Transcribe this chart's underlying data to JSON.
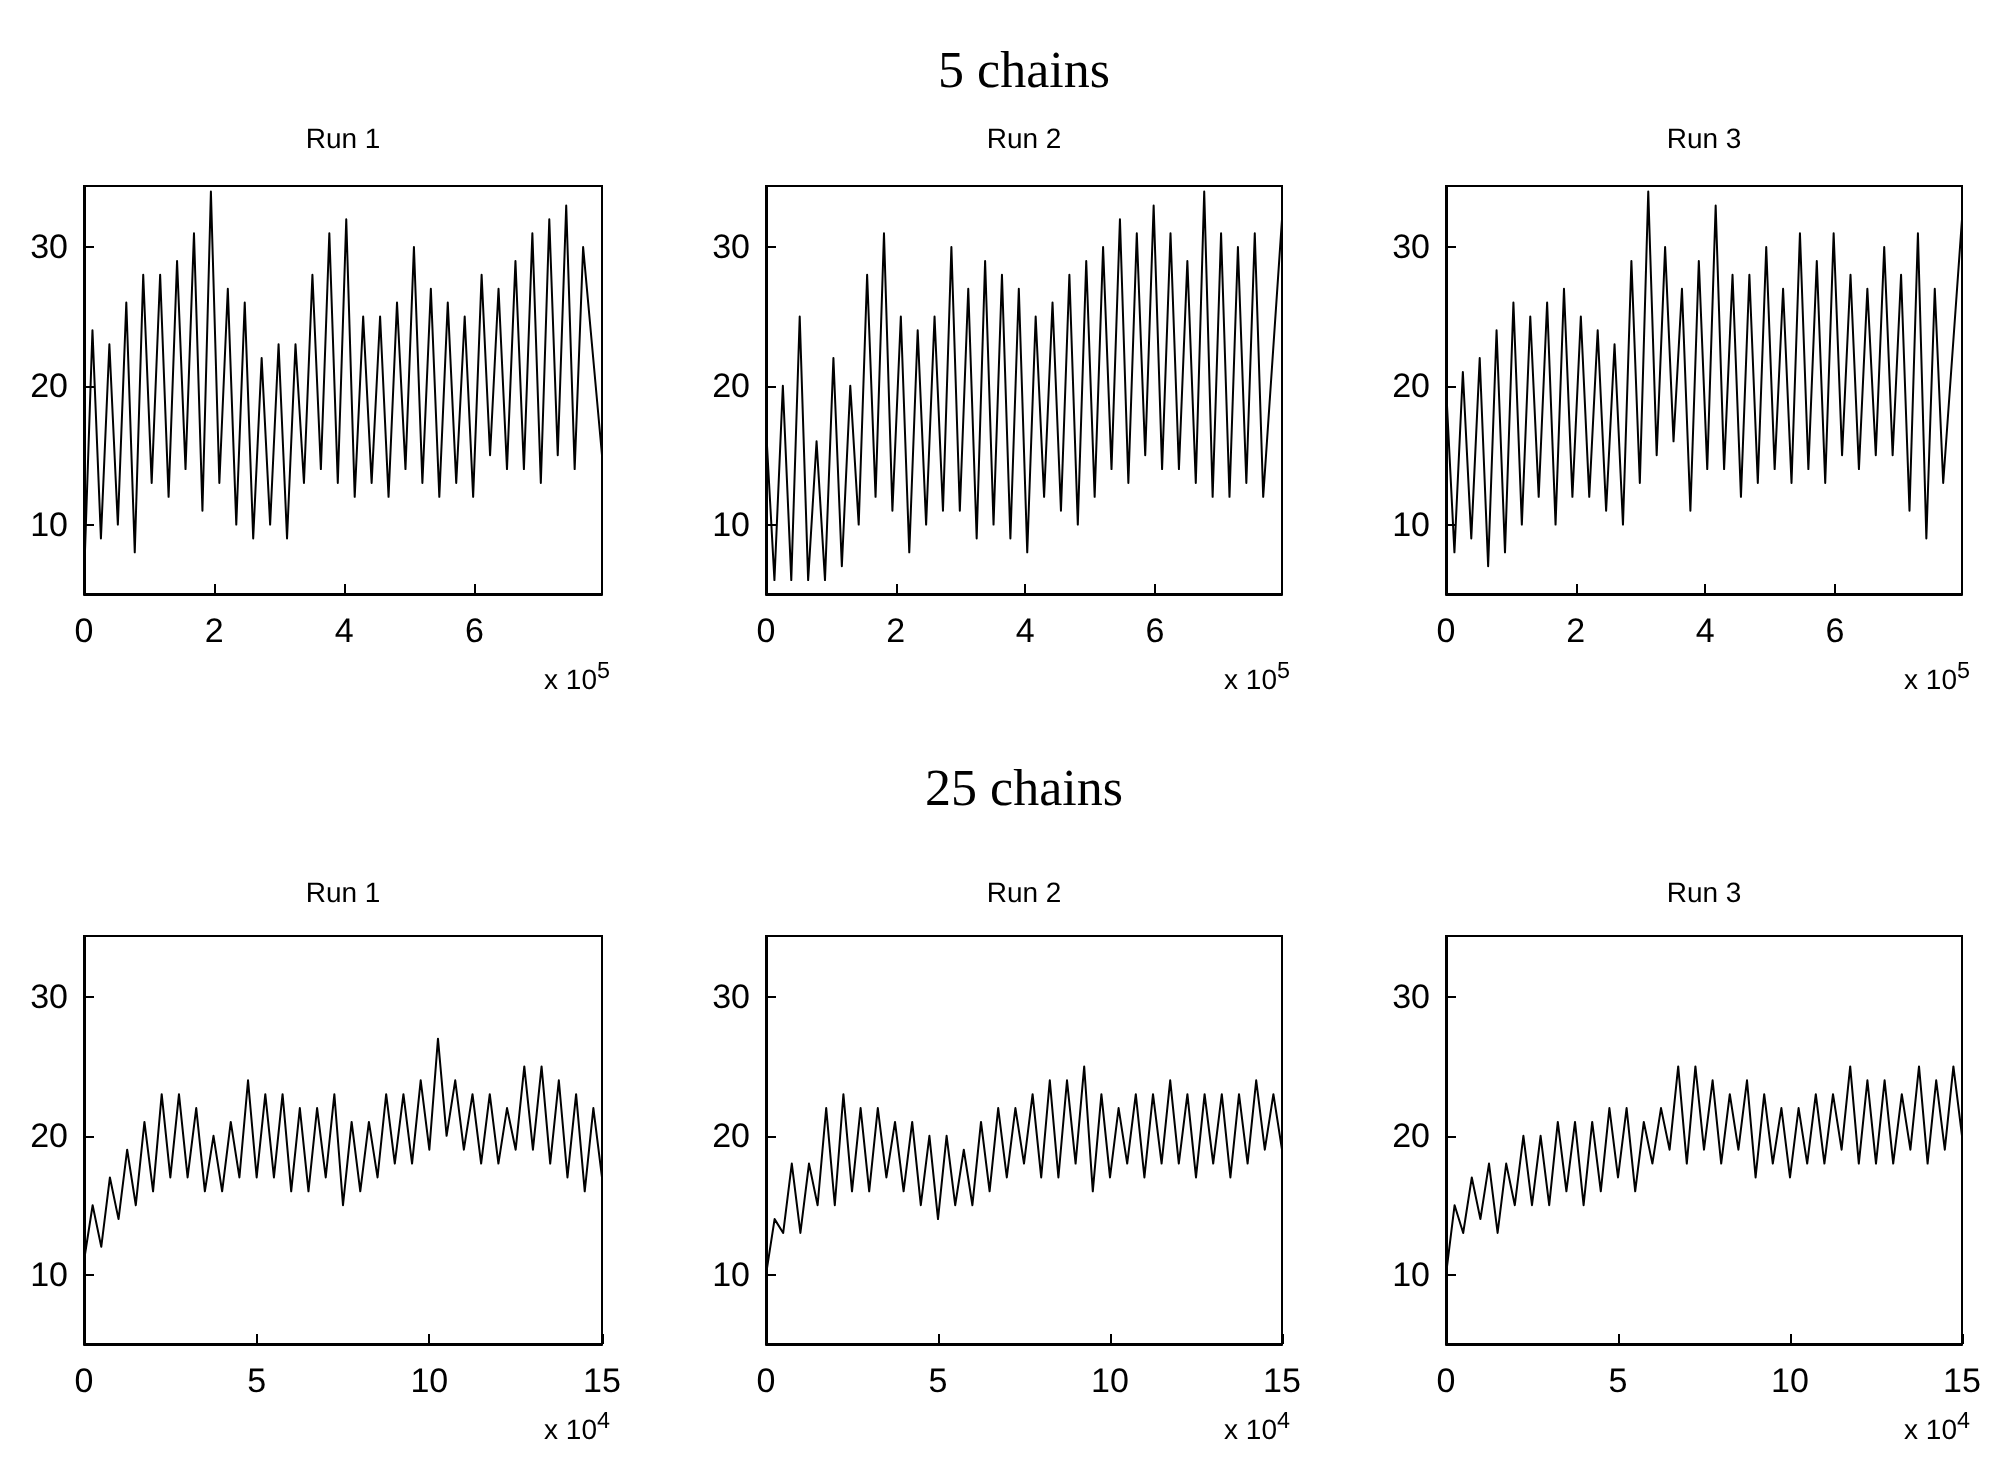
{
  "chart_data": [
    {
      "type": "line",
      "title": "Run 1",
      "xlabel": "x 10$^{5}$",
      "xlim": [
        0,
        7.96
      ],
      "xticks": [
        0,
        2,
        4,
        6
      ],
      "ylim": [
        5,
        34.4
      ],
      "yticks": [
        10,
        20,
        30
      ],
      "x": [
        0,
        0.13,
        0.26,
        0.39,
        0.52,
        0.65,
        0.78,
        0.91,
        1.04,
        1.17,
        1.3,
        1.43,
        1.56,
        1.69,
        1.82,
        1.95,
        2.08,
        2.21,
        2.34,
        2.47,
        2.6,
        2.73,
        2.86,
        2.99,
        3.12,
        3.25,
        3.38,
        3.51,
        3.64,
        3.77,
        3.9,
        4.03,
        4.16,
        4.29,
        4.42,
        4.55,
        4.68,
        4.81,
        4.94,
        5.07,
        5.2,
        5.33,
        5.46,
        5.59,
        5.72,
        5.85,
        5.98,
        6.11,
        6.24,
        6.37,
        6.5,
        6.63,
        6.76,
        6.89,
        7.02,
        7.15,
        7.28,
        7.41,
        7.54,
        7.67,
        7.96
      ],
      "series": [
        {
          "color": "#000000",
          "values": [
            6,
            24,
            9,
            23,
            10,
            26,
            8,
            28,
            13,
            28,
            12,
            29,
            14,
            31,
            11,
            34,
            13,
            27,
            10,
            26,
            9,
            22,
            10,
            23,
            9,
            23,
            13,
            28,
            14,
            31,
            13,
            32,
            12,
            25,
            13,
            25,
            12,
            26,
            14,
            30,
            13,
            27,
            12,
            26,
            13,
            25,
            12,
            28,
            15,
            27,
            14,
            29,
            14,
            31,
            13,
            32,
            15,
            33,
            14,
            30,
            15
          ]
        }
      ]
    },
    {
      "type": "line",
      "title": "5 chains",
      "subtitle": "Run 2",
      "xlabel": "x 10$^{5}$",
      "xlim": [
        0,
        7.96
      ],
      "xticks": [
        0,
        2,
        4,
        6
      ],
      "ylim": [
        5,
        34.4
      ],
      "yticks": [
        10,
        20,
        30
      ],
      "x": [
        0,
        0.13,
        0.26,
        0.39,
        0.52,
        0.65,
        0.78,
        0.91,
        1.04,
        1.17,
        1.3,
        1.43,
        1.56,
        1.69,
        1.82,
        1.95,
        2.08,
        2.21,
        2.34,
        2.47,
        2.6,
        2.73,
        2.86,
        2.99,
        3.12,
        3.25,
        3.38,
        3.51,
        3.64,
        3.77,
        3.9,
        4.03,
        4.16,
        4.29,
        4.42,
        4.55,
        4.68,
        4.81,
        4.94,
        5.07,
        5.2,
        5.33,
        5.46,
        5.59,
        5.72,
        5.85,
        5.98,
        6.11,
        6.24,
        6.37,
        6.5,
        6.63,
        6.76,
        6.89,
        7.02,
        7.15,
        7.28,
        7.41,
        7.54,
        7.67,
        7.96
      ],
      "series": [
        {
          "color": "#000000",
          "values": [
            17,
            6,
            20,
            6,
            25,
            6,
            16,
            6,
            22,
            7,
            20,
            10,
            28,
            12,
            31,
            11,
            25,
            8,
            24,
            10,
            25,
            11,
            30,
            11,
            27,
            9,
            29,
            10,
            28,
            9,
            27,
            8,
            25,
            12,
            26,
            11,
            28,
            10,
            29,
            12,
            30,
            14,
            32,
            13,
            31,
            15,
            33,
            14,
            31,
            14,
            29,
            13,
            34,
            12,
            31,
            12,
            30,
            13,
            31,
            12,
            32
          ]
        }
      ]
    },
    {
      "type": "line",
      "title": "Run 3",
      "xlabel": "x 10$^{5}$",
      "xlim": [
        0,
        7.96
      ],
      "xticks": [
        0,
        2,
        4,
        6
      ],
      "ylim": [
        5,
        34.4
      ],
      "yticks": [
        10,
        20,
        30
      ],
      "x": [
        0,
        0.13,
        0.26,
        0.39,
        0.52,
        0.65,
        0.78,
        0.91,
        1.04,
        1.17,
        1.3,
        1.43,
        1.56,
        1.69,
        1.82,
        1.95,
        2.08,
        2.21,
        2.34,
        2.47,
        2.6,
        2.73,
        2.86,
        2.99,
        3.12,
        3.25,
        3.38,
        3.51,
        3.64,
        3.77,
        3.9,
        4.03,
        4.16,
        4.29,
        4.42,
        4.55,
        4.68,
        4.81,
        4.94,
        5.07,
        5.2,
        5.33,
        5.46,
        5.59,
        5.72,
        5.85,
        5.98,
        6.11,
        6.24,
        6.37,
        6.5,
        6.63,
        6.76,
        6.89,
        7.02,
        7.15,
        7.28,
        7.41,
        7.54,
        7.67,
        7.96
      ],
      "series": [
        {
          "color": "#000000",
          "values": [
            20,
            8,
            21,
            9,
            22,
            7,
            24,
            8,
            26,
            10,
            25,
            12,
            26,
            10,
            27,
            12,
            25,
            12,
            24,
            11,
            23,
            10,
            29,
            13,
            34,
            15,
            30,
            16,
            27,
            11,
            29,
            14,
            33,
            14,
            28,
            12,
            28,
            13,
            30,
            14,
            27,
            13,
            31,
            14,
            29,
            13,
            31,
            15,
            28,
            14,
            27,
            15,
            30,
            15,
            28,
            11,
            31,
            9,
            27,
            13,
            32
          ]
        }
      ]
    },
    {
      "type": "line",
      "title": "Run 1",
      "xlabel": "x 10$^{4}$",
      "xlim": [
        0,
        15
      ],
      "xticks": [
        0,
        5,
        10,
        15
      ],
      "ylim": [
        5,
        34.4
      ],
      "yticks": [
        10,
        20,
        30
      ],
      "x": [
        0,
        0.25,
        0.5,
        0.75,
        1,
        1.25,
        1.5,
        1.75,
        2,
        2.25,
        2.5,
        2.75,
        3,
        3.25,
        3.5,
        3.75,
        4,
        4.25,
        4.5,
        4.75,
        5,
        5.25,
        5.5,
        5.75,
        6,
        6.25,
        6.5,
        6.75,
        7,
        7.25,
        7.5,
        7.75,
        8,
        8.25,
        8.5,
        8.75,
        9,
        9.25,
        9.5,
        9.75,
        10,
        10.25,
        10.5,
        10.75,
        11,
        11.25,
        11.5,
        11.75,
        12,
        12.25,
        12.5,
        12.75,
        13,
        13.25,
        13.5,
        13.75,
        14,
        14.25,
        14.5,
        14.75,
        15
      ],
      "series": [
        {
          "color": "#000000",
          "values": [
            11,
            15,
            12,
            17,
            14,
            19,
            15,
            21,
            16,
            23,
            17,
            23,
            17,
            22,
            16,
            20,
            16,
            21,
            17,
            24,
            17,
            23,
            17,
            23,
            16,
            22,
            16,
            22,
            17,
            23,
            15,
            21,
            16,
            21,
            17,
            23,
            18,
            23,
            18,
            24,
            19,
            27,
            20,
            24,
            19,
            23,
            18,
            23,
            18,
            22,
            19,
            25,
            19,
            25,
            18,
            24,
            17,
            23,
            16,
            22,
            17
          ]
        }
      ]
    },
    {
      "type": "line",
      "title": "25 chains",
      "subtitle": "Run 2",
      "xlabel": "x 10$^{4}$",
      "xlim": [
        0,
        15
      ],
      "xticks": [
        0,
        5,
        10,
        15
      ],
      "ylim": [
        5,
        34.4
      ],
      "yticks": [
        10,
        20,
        30
      ],
      "x": [
        0,
        0.25,
        0.5,
        0.75,
        1,
        1.25,
        1.5,
        1.75,
        2,
        2.25,
        2.5,
        2.75,
        3,
        3.25,
        3.5,
        3.75,
        4,
        4.25,
        4.5,
        4.75,
        5,
        5.25,
        5.5,
        5.75,
        6,
        6.25,
        6.5,
        6.75,
        7,
        7.25,
        7.5,
        7.75,
        8,
        8.25,
        8.5,
        8.75,
        9,
        9.25,
        9.5,
        9.75,
        10,
        10.25,
        10.5,
        10.75,
        11,
        11.25,
        11.5,
        11.75,
        12,
        12.25,
        12.5,
        12.75,
        13,
        13.25,
        13.5,
        13.75,
        14,
        14.25,
        14.5,
        14.75,
        15
      ],
      "series": [
        {
          "color": "#000000",
          "values": [
            10,
            14,
            13,
            18,
            13,
            18,
            15,
            22,
            15,
            23,
            16,
            22,
            16,
            22,
            17,
            21,
            16,
            21,
            15,
            20,
            14,
            20,
            15,
            19,
            15,
            21,
            16,
            22,
            17,
            22,
            18,
            23,
            17,
            24,
            17,
            24,
            18,
            25,
            16,
            23,
            17,
            22,
            18,
            23,
            17,
            23,
            18,
            24,
            18,
            23,
            17,
            23,
            18,
            23,
            17,
            23,
            18,
            24,
            19,
            23,
            19
          ]
        }
      ]
    },
    {
      "type": "line",
      "title": "Run 3",
      "xlabel": "x 10$^{4}$",
      "xlim": [
        0,
        15
      ],
      "xticks": [
        0,
        5,
        10,
        15
      ],
      "ylim": [
        5,
        34.4
      ],
      "yticks": [
        10,
        20,
        30
      ],
      "x": [
        0,
        0.25,
        0.5,
        0.75,
        1,
        1.25,
        1.5,
        1.75,
        2,
        2.25,
        2.5,
        2.75,
        3,
        3.25,
        3.5,
        3.75,
        4,
        4.25,
        4.5,
        4.75,
        5,
        5.25,
        5.5,
        5.75,
        6,
        6.25,
        6.5,
        6.75,
        7,
        7.25,
        7.5,
        7.75,
        8,
        8.25,
        8.5,
        8.75,
        9,
        9.25,
        9.5,
        9.75,
        10,
        10.25,
        10.5,
        10.75,
        11,
        11.25,
        11.5,
        11.75,
        12,
        12.25,
        12.5,
        12.75,
        13,
        13.25,
        13.5,
        13.75,
        14,
        14.25,
        14.5,
        14.75,
        15
      ],
      "series": [
        {
          "color": "#000000",
          "values": [
            10,
            15,
            13,
            17,
            14,
            18,
            13,
            18,
            15,
            20,
            15,
            20,
            15,
            21,
            16,
            21,
            15,
            21,
            16,
            22,
            17,
            22,
            16,
            21,
            18,
            22,
            19,
            25,
            18,
            25,
            19,
            24,
            18,
            23,
            19,
            24,
            17,
            23,
            18,
            22,
            17,
            22,
            18,
            23,
            18,
            23,
            19,
            25,
            18,
            24,
            18,
            24,
            18,
            23,
            19,
            25,
            18,
            24,
            19,
            25,
            20
          ]
        }
      ]
    }
  ]
}
